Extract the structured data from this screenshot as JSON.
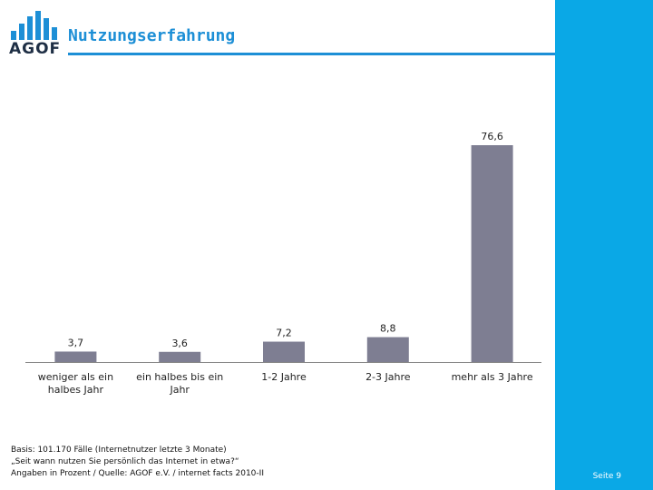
{
  "header": {
    "logo_text": "AGOF",
    "title": "Nutzungserfahrung"
  },
  "colors": {
    "accent": "#1d8fd6",
    "strip": "#0aa8e6",
    "bar": "#7e7e92"
  },
  "chart_data": {
    "type": "bar",
    "categories": [
      [
        "weniger als ein",
        "halbes Jahr"
      ],
      [
        "ein halbes bis ein",
        "Jahr"
      ],
      [
        "1-2 Jahre"
      ],
      [
        "2-3 Jahre"
      ],
      [
        "mehr als 3 Jahre"
      ]
    ],
    "values": [
      3.7,
      3.6,
      7.2,
      8.8,
      76.6
    ],
    "value_labels": [
      "3,7",
      "3,6",
      "7,2",
      "8,8",
      "76,6"
    ],
    "ylim": [
      0,
      100
    ],
    "grid": false,
    "legend": "none"
  },
  "footnotes": [
    "Basis: 101.170 Fälle (Internetnutzer letzte 3 Monate)",
    "„Seit wann nutzen Sie persönlich das Internet in etwa?“",
    "Angaben in Prozent / Quelle: AGOF e.V. / internet facts 2010-II"
  ],
  "page": {
    "label": "Seite 9"
  }
}
